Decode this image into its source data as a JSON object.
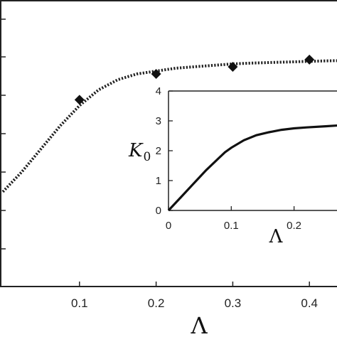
{
  "chart_data": [
    {
      "type": "scatter",
      "panel": "main",
      "xlabel": "Λ",
      "ylabel": "",
      "xlim": [
        0.0,
        0.5
      ],
      "x_ticks": [
        "0.1",
        "0.2",
        "0.3",
        "0.4"
      ],
      "grid": false,
      "series": [
        {
          "style": "markers",
          "marker": "diamond",
          "x": [
            0.1,
            0.2,
            0.3,
            0.4
          ],
          "y": [
            0.7,
            0.79,
            0.815,
            0.84
          ]
        },
        {
          "style": "dotted-line",
          "x": [
            0.0,
            0.025,
            0.05,
            0.075,
            0.1,
            0.125,
            0.15,
            0.175,
            0.2,
            0.225,
            0.25,
            0.275,
            0.3,
            0.325,
            0.35,
            0.375,
            0.4,
            0.425,
            0.45,
            0.475,
            0.5
          ],
          "y": [
            0.38,
            0.45,
            0.53,
            0.61,
            0.68,
            0.735,
            0.77,
            0.79,
            0.8,
            0.81,
            0.815,
            0.82,
            0.825,
            0.828,
            0.83,
            0.832,
            0.834,
            0.836,
            0.837,
            0.838,
            0.84
          ]
        }
      ]
    },
    {
      "type": "line",
      "panel": "inset",
      "ylabel": "K",
      "ylabel_sub": "0",
      "xlabel": "Λ",
      "xlim": [
        0.0,
        0.3
      ],
      "ylim": [
        0,
        4
      ],
      "x_ticks": [
        "0",
        "0.1",
        "0.2"
      ],
      "y_ticks": [
        "0",
        "1",
        "2",
        "3",
        "4"
      ],
      "grid": false,
      "series": [
        {
          "style": "solid-line",
          "x": [
            0.0,
            0.02,
            0.04,
            0.06,
            0.08,
            0.09,
            0.1,
            0.12,
            0.14,
            0.16,
            0.18,
            0.2,
            0.22,
            0.25,
            0.28,
            0.3
          ],
          "y": [
            0.0,
            0.45,
            0.9,
            1.35,
            1.75,
            1.95,
            2.1,
            2.35,
            2.52,
            2.62,
            2.7,
            2.75,
            2.78,
            2.82,
            2.86,
            2.88
          ]
        }
      ]
    }
  ]
}
